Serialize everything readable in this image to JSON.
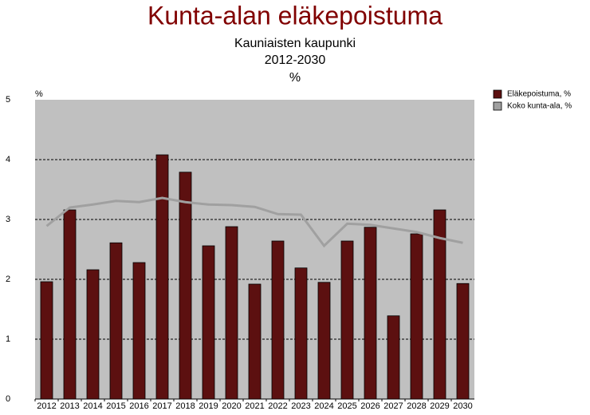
{
  "chart_data": {
    "type": "bar",
    "title": "Kunta-alan eläkepoistuma",
    "subtitle": [
      "Kauniaisten kaupunki",
      "2012-2030",
      "%"
    ],
    "ylabel": "%",
    "categories": [
      "2012",
      "2013",
      "2014",
      "2015",
      "2016",
      "2017",
      "2018",
      "2019",
      "2020",
      "2021",
      "2022",
      "2023",
      "2024",
      "2025",
      "2026",
      "2027",
      "2028",
      "2029",
      "2030"
    ],
    "series": [
      {
        "name": "Eläkepoistuma, %",
        "type": "bar",
        "color": "#5c1010",
        "values": [
          1.96,
          3.16,
          2.16,
          2.61,
          2.28,
          4.08,
          3.79,
          2.56,
          2.88,
          1.92,
          2.64,
          2.19,
          1.95,
          2.64,
          2.87,
          1.39,
          2.76,
          3.16,
          1.93
        ]
      },
      {
        "name": "Koko kunta-ala, %",
        "type": "line",
        "color": "#a0a0a0",
        "values": [
          2.89,
          3.2,
          3.25,
          3.31,
          3.29,
          3.36,
          3.29,
          3.25,
          3.24,
          3.21,
          3.09,
          3.08,
          2.56,
          2.93,
          2.91,
          2.85,
          2.79,
          2.69,
          2.61
        ]
      }
    ],
    "ylim": [
      0,
      5
    ],
    "yticks": [
      0,
      1,
      2,
      3,
      4,
      5
    ],
    "grid": true,
    "legend": "top-right"
  }
}
